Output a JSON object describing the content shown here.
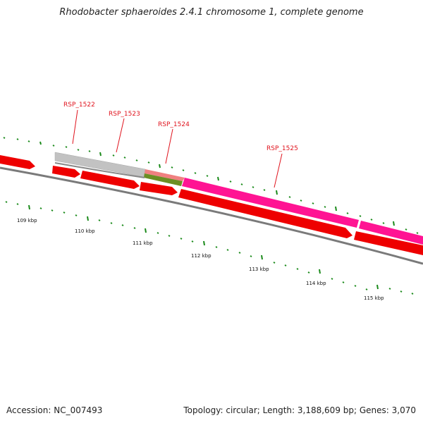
{
  "title": "Rhodobacter sphaeroides 2.4.1 chromosome 1, complete genome",
  "accession": "Accession: NC_007493",
  "summary": "Topology: circular; Length: 3,188,609 bp; Genes: 3,070",
  "genes": [
    {
      "label": "RSP_1522"
    },
    {
      "label": "RSP_1523"
    },
    {
      "label": "RSP_1524"
    },
    {
      "label": "RSP_1525"
    }
  ],
  "kbp_ticks": [
    "109 kbp",
    "110 kbp",
    "111 kbp",
    "112 kbp",
    "113 kbp",
    "114 kbp",
    "115 kbp"
  ],
  "colors": {
    "cds_red": "#ee0000",
    "gene_grey": "#c2c2c2",
    "gene_salmon": "#f08080",
    "gene_olive": "#6b8e23",
    "gene_magenta": "#ff1493",
    "tick_green": "#1a8a1a",
    "backbone": "#7a7a7a",
    "label_red": "#e0141e"
  }
}
